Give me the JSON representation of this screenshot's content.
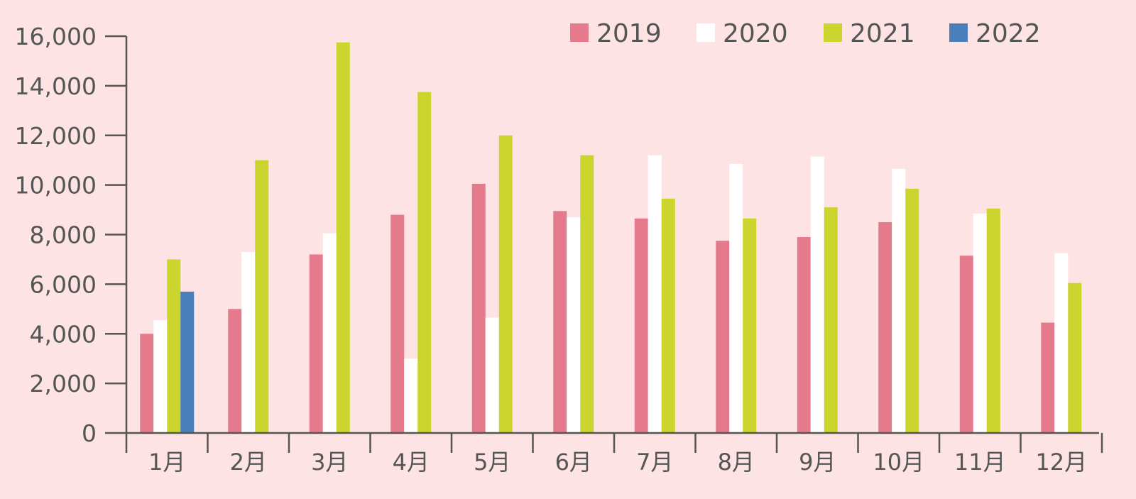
{
  "chart_data": {
    "type": "bar",
    "title": "",
    "xlabel": "",
    "ylabel": "",
    "ylim": [
      0,
      16000
    ],
    "yticks": [
      0,
      2000,
      4000,
      6000,
      8000,
      10000,
      12000,
      14000,
      16000
    ],
    "ytick_labels": [
      "0",
      "2,000",
      "4,000",
      "6,000",
      "8,000",
      "10,000",
      "12,000",
      "14,000",
      "16,000"
    ],
    "categories": [
      "1月",
      "2月",
      "3月",
      "4月",
      "5月",
      "6月",
      "7月",
      "8月",
      "9月",
      "10月",
      "11月",
      "12月"
    ],
    "series": [
      {
        "name": "2019",
        "color": "#e57a8c",
        "values": [
          4000,
          5000,
          7200,
          8800,
          10050,
          8950,
          8650,
          7750,
          7900,
          8500,
          7150,
          4450
        ]
      },
      {
        "name": "2020",
        "color": "#ffffff",
        "values": [
          4550,
          7300,
          8050,
          3000,
          4650,
          8700,
          11200,
          10850,
          11150,
          10650,
          8850,
          7250
        ]
      },
      {
        "name": "2021",
        "color": "#ccd52e",
        "values": [
          7000,
          11000,
          15750,
          13750,
          12000,
          11200,
          9450,
          8650,
          9100,
          9850,
          9050,
          6050
        ]
      },
      {
        "name": "2022",
        "color": "#4a7fbc",
        "values": [
          5700,
          null,
          null,
          null,
          null,
          null,
          null,
          null,
          null,
          null,
          null,
          null
        ]
      }
    ],
    "legend": "top-right",
    "grid": false
  }
}
